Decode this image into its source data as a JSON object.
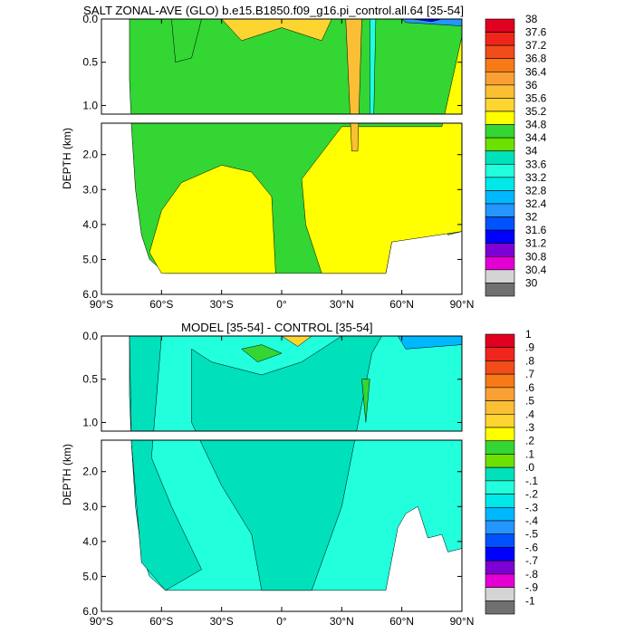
{
  "panels": [
    {
      "title": "SALT ZONAL-AVE (GLO) b.e15.B1850.f09_g16.pi_control.all.64 [35-54]",
      "ylabel": "DEPTH (km)"
    },
    {
      "title": "MODEL [35-54] - CONTROL [35-54]",
      "ylabel": "DEPTH (km)"
    }
  ],
  "chart_data": [
    {
      "type": "heatmap",
      "title": "SALT ZONAL-AVE (GLO) b.e15.B1850.f09_g16.pi_control.all.64 [35-54]",
      "xlabel": "",
      "ylabel": "DEPTH (km)",
      "x_ticks": [
        "90°S",
        "60°S",
        "30°S",
        "0°",
        "30°N",
        "60°N",
        "90°N"
      ],
      "x_tick_values": [
        -90,
        -60,
        -30,
        0,
        30,
        60,
        90
      ],
      "y_ticks": [
        "0.0",
        "0.5",
        "1.0",
        "2.0",
        "3.0",
        "4.0",
        "5.0",
        "6.0"
      ],
      "y_tick_values": [
        0,
        0.5,
        1.0,
        2.0,
        3.0,
        4.0,
        5.0,
        6.0
      ],
      "xlim": [
        -90,
        90
      ],
      "ylim": [
        6.0,
        0.0
      ],
      "y_split_km": 1.1,
      "colorbar_labels": [
        "38",
        "37.6",
        "37.2",
        "36.8",
        "36.4",
        "36",
        "35.6",
        "35.2",
        "34.8",
        "34.4",
        "34",
        "33.6",
        "33.2",
        "32.8",
        "32.4",
        "32",
        "31.6",
        "31.2",
        "30.8",
        "30.4",
        "30"
      ],
      "colorbar_colors": [
        "#e0001f",
        "#f0261c",
        "#f24c1a",
        "#f77a16",
        "#f9a035",
        "#fbbf35",
        "#fdd530",
        "#ffff00",
        "#33d633",
        "#6ce000",
        "#00e0bb",
        "#22ffdd",
        "#00e8e8",
        "#00b8ff",
        "#2596ff",
        "#0052ff",
        "#0000ff",
        "#7d00d4",
        "#e400d4",
        "#d4d4d4",
        "#707070"
      ],
      "colorbar_bins_note": "",
      "land_color": "#ffffff"
    },
    {
      "type": "heatmap",
      "title": "MODEL [35-54] - CONTROL [35-54]",
      "xlabel": "",
      "ylabel": "DEPTH (km)",
      "x_ticks": [
        "90°S",
        "60°S",
        "30°S",
        "0°",
        "30°N",
        "60°N",
        "90°N"
      ],
      "x_tick_values": [
        -90,
        -60,
        -30,
        0,
        30,
        60,
        90
      ],
      "y_ticks": [
        "0.0",
        "0.5",
        "1.0",
        "2.0",
        "3.0",
        "4.0",
        "5.0",
        "6.0"
      ],
      "y_tick_values": [
        0,
        0.5,
        1.0,
        2.0,
        3.0,
        4.0,
        5.0,
        6.0
      ],
      "xlim": [
        -90,
        90
      ],
      "ylim": [
        6.0,
        0.0
      ],
      "y_split_km": 1.1,
      "colorbar_labels": [
        "1",
        ".9",
        ".8",
        ".7",
        ".6",
        ".5",
        ".4",
        ".3",
        ".2",
        ".1",
        ".0",
        "-.1",
        "-.2",
        "-.3",
        "-.4",
        "-.5",
        "-.6",
        "-.7",
        "-.8",
        "-.9",
        "-1"
      ],
      "colorbar_colors": [
        "#e0001f",
        "#f0261c",
        "#f24c1a",
        "#f77a16",
        "#f9a035",
        "#fbbf35",
        "#fdd530",
        "#ffff00",
        "#33d633",
        "#6ce000",
        "#00e0bb",
        "#22ffdd",
        "#00e8e8",
        "#00b8ff",
        "#2596ff",
        "#0052ff",
        "#0000ff",
        "#7d00d4",
        "#e400d4",
        "#d4d4d4",
        "#707070"
      ]
    }
  ]
}
